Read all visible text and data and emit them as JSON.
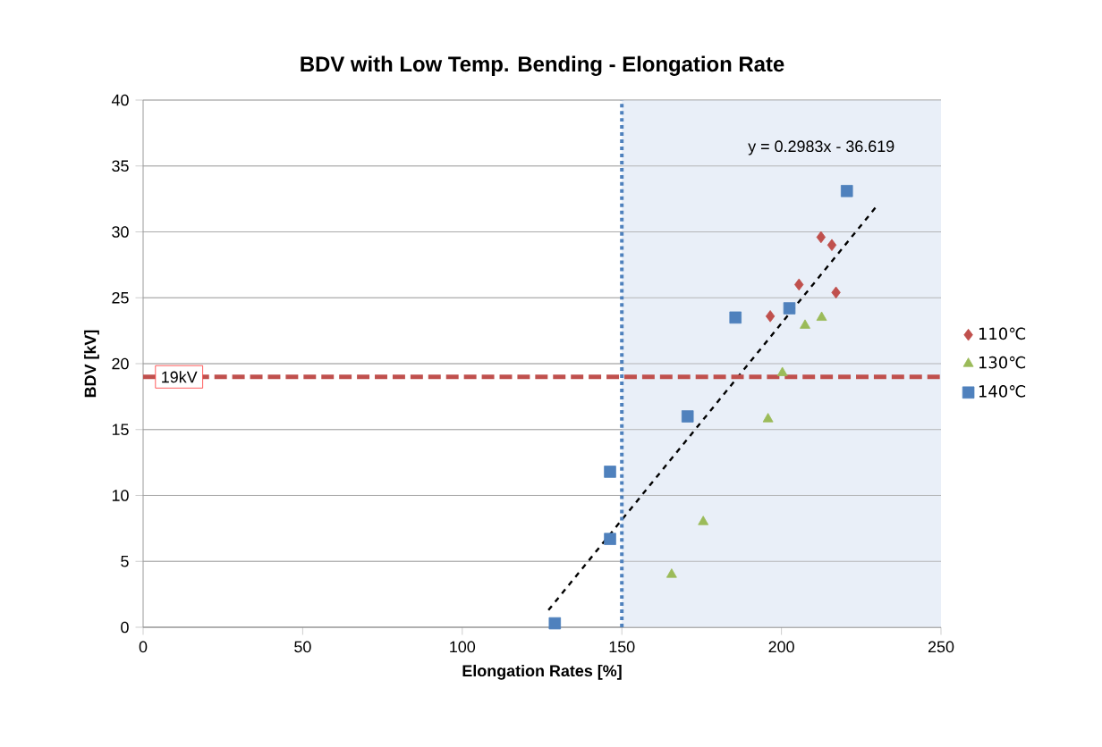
{
  "chart_data": {
    "type": "scatter",
    "title": "BDV with Low Temp. Bending - Elongation Rate",
    "xlabel": "Elongation Rates [%]",
    "ylabel": "BDV [kV]",
    "xlim": [
      0,
      250
    ],
    "ylim": [
      0,
      40
    ],
    "xticks": [
      0,
      50,
      100,
      150,
      200,
      250
    ],
    "yticks": [
      0,
      5,
      10,
      15,
      20,
      25,
      30,
      35,
      40
    ],
    "grid": "y",
    "legend": "right",
    "series": [
      {
        "name": "110℃",
        "color": "#c0504d",
        "marker": "diamond",
        "x": [
          196.5,
          205.5,
          212.4,
          215.8,
          217.1
        ],
        "values": [
          23.6,
          26.0,
          29.6,
          29.0,
          25.4
        ]
      },
      {
        "name": "130℃",
        "color": "#9bbb59",
        "marker": "triangle",
        "x": [
          165.6,
          175.5,
          195.8,
          200.3,
          207.4,
          212.6
        ],
        "values": [
          4.0,
          8.0,
          15.8,
          19.3,
          22.9,
          23.5
        ]
      },
      {
        "name": "140℃",
        "color": "#4f81bd",
        "marker": "square",
        "x": [
          129,
          146.3,
          146.3,
          170.6,
          185.6,
          202.5,
          220.5
        ],
        "values": [
          0.3,
          6.7,
          11.8,
          16.0,
          23.5,
          24.2,
          33.1
        ]
      },
      {
        "type": "line",
        "color": "#000000",
        "marker": "none",
        "line_style": "dashed",
        "x": [
          127,
          230
        ],
        "values": [
          1.3,
          32.0
        ]
      }
    ],
    "ref_lines": [
      {
        "axis": "y",
        "value": 19,
        "label": "19kV",
        "color": "#c0504d",
        "line_style": "dashed"
      },
      {
        "axis": "x",
        "value": 150,
        "color": "#4f81bd",
        "line_style": "dotted"
      }
    ],
    "bands": [
      {
        "axis": "x",
        "from": 150,
        "to": 250,
        "color": "#e9eff8"
      }
    ],
    "annotations": [
      "y = 0.2983x - 36.619"
    ]
  }
}
